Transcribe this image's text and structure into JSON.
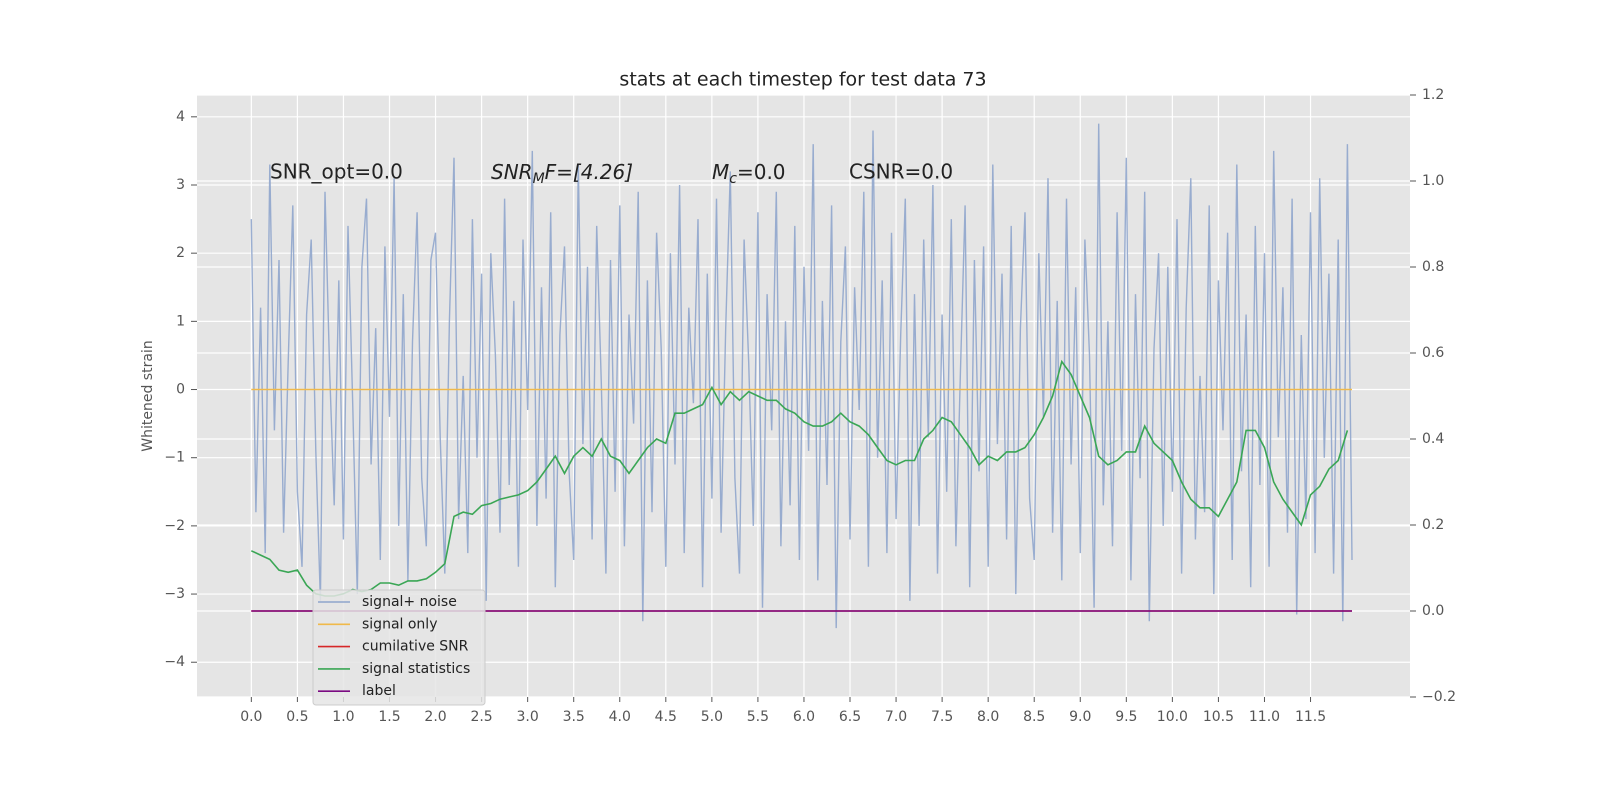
{
  "chart_data": {
    "type": "line",
    "title": "stats at each timestep for test data 73",
    "ylabel": "Whitened strain",
    "annotations": [
      "SNR_opt=0.0",
      [
        "SNR",
        "M",
        "F=[4.26]"
      ],
      [
        "M",
        "c",
        "=0.0"
      ],
      "CSNR=0.0"
    ],
    "xlim": [
      -0.59,
      12.58
    ],
    "ylim": [
      -4.51,
      4.32
    ],
    "y2lim": [
      -0.2,
      1.2
    ],
    "xticks": [
      {
        "value": 0,
        "label": "0.0"
      },
      0.5,
      {
        "value": 1,
        "label": "1.0"
      },
      1.5,
      {
        "value": 2,
        "label": "2.0"
      },
      2.5,
      {
        "value": 3,
        "label": "3.0"
      },
      3.5,
      {
        "value": 4,
        "label": "4.0"
      },
      4.5,
      {
        "value": 5,
        "label": "5.0"
      },
      5.5,
      {
        "value": 6,
        "label": "6.0"
      },
      6.5,
      {
        "value": 7,
        "label": "7.0"
      },
      7.5,
      {
        "value": 8,
        "label": "8.0"
      },
      8.5,
      {
        "value": 9,
        "label": "9.0"
      },
      9.5,
      {
        "value": 10,
        "label": "10.0"
      },
      10.5,
      {
        "value": 11,
        "label": "11.0"
      },
      11.5
    ],
    "yticks": [
      {
        "value": -4,
        "label": "−4"
      },
      {
        "value": -3,
        "label": "−3"
      },
      {
        "value": -2,
        "label": "−2"
      },
      {
        "value": -1,
        "label": "−1"
      },
      0,
      1,
      2,
      3,
      4
    ],
    "y2ticks": [
      {
        "value": -0.2,
        "label": "−0.2"
      },
      {
        "value": 0,
        "label": "0.0"
      },
      0.2,
      0.4,
      0.6,
      0.8,
      {
        "value": 1,
        "label": "1.0"
      },
      1.2
    ],
    "grid": true,
    "legend": "lower left",
    "series": [
      {
        "name": "signal+ noise",
        "color": "#8fa5cc",
        "x": [
          0,
          0.05,
          0.1,
          0.15,
          0.2,
          0.25,
          0.3,
          0.35,
          0.4,
          0.45,
          0.5,
          0.55,
          0.6,
          0.65,
          0.7,
          0.75,
          0.8,
          0.85,
          0.9,
          0.95,
          1,
          1.05,
          1.1,
          1.15,
          1.2,
          1.25,
          1.3,
          1.35,
          1.4,
          1.45,
          1.5,
          1.55,
          1.6,
          1.65,
          1.7,
          1.75,
          1.8,
          1.85,
          1.9,
          1.95,
          2,
          2.05,
          2.1,
          2.15,
          2.2,
          2.25,
          2.3,
          2.35,
          2.4,
          2.45,
          2.5,
          2.55,
          2.6,
          2.65,
          2.7,
          2.75,
          2.8,
          2.85,
          2.9,
          2.95,
          3,
          3.05,
          3.1,
          3.15,
          3.2,
          3.25,
          3.3,
          3.35,
          3.4,
          3.45,
          3.5,
          3.55,
          3.6,
          3.65,
          3.7,
          3.75,
          3.8,
          3.85,
          3.9,
          3.95,
          4,
          4.05,
          4.1,
          4.15,
          4.2,
          4.25,
          4.3,
          4.35,
          4.4,
          4.45,
          4.5,
          4.55,
          4.6,
          4.65,
          4.7,
          4.75,
          4.8,
          4.85,
          4.9,
          4.95,
          5,
          5.05,
          5.1,
          5.15,
          5.2,
          5.25,
          5.3,
          5.35,
          5.4,
          5.45,
          5.5,
          5.55,
          5.6,
          5.65,
          5.7,
          5.75,
          5.8,
          5.85,
          5.9,
          5.95,
          6,
          6.05,
          6.1,
          6.15,
          6.2,
          6.25,
          6.3,
          6.35,
          6.4,
          6.45,
          6.5,
          6.55,
          6.6,
          6.65,
          6.7,
          6.75,
          6.8,
          6.85,
          6.9,
          6.95,
          7,
          7.05,
          7.1,
          7.15,
          7.2,
          7.25,
          7.3,
          7.35,
          7.4,
          7.45,
          7.5,
          7.55,
          7.6,
          7.65,
          7.7,
          7.75,
          7.8,
          7.85,
          7.9,
          7.95,
          8,
          8.05,
          8.1,
          8.15,
          8.2,
          8.25,
          8.3,
          8.35,
          8.4,
          8.45,
          8.5,
          8.55,
          8.6,
          8.65,
          8.7,
          8.75,
          8.8,
          8.85,
          8.9,
          8.95,
          9,
          9.05,
          9.1,
          9.15,
          9.2,
          9.25,
          9.3,
          9.35,
          9.4,
          9.45,
          9.5,
          9.55,
          9.6,
          9.65,
          9.7,
          9.75,
          9.8,
          9.85,
          9.9,
          9.95,
          10,
          10.05,
          10.1,
          10.15,
          10.2,
          10.25,
          10.3,
          10.35,
          10.4,
          10.45,
          10.5,
          10.55,
          10.6,
          10.65,
          10.7,
          10.75,
          10.8,
          10.85,
          10.9,
          10.95,
          11,
          11.05,
          11.1,
          11.15,
          11.2,
          11.25,
          11.3,
          11.35,
          11.4,
          11.45,
          11.5,
          11.55,
          11.6,
          11.65,
          11.7,
          11.75,
          11.8,
          11.85,
          11.9,
          11.95
        ],
        "values": [
          2.5,
          -1.8,
          1.2,
          -2.4,
          3.3,
          -0.6,
          1.9,
          -2.1,
          0.4,
          2.7,
          -1.5,
          -2.6,
          1.1,
          2.2,
          -0.9,
          -3.1,
          2.9,
          0.3,
          -1.7,
          1.6,
          -2.2,
          2.4,
          -0.2,
          -3.0,
          1.8,
          2.8,
          -1.1,
          0.9,
          -2.5,
          2.1,
          -0.4,
          3.1,
          -2.0,
          1.4,
          -2.8,
          0.7,
          2.6,
          -1.3,
          -2.3,
          1.9,
          2.3,
          -0.7,
          -2.7,
          1.0,
          3.4,
          -1.9,
          0.2,
          -2.4,
          2.5,
          -1.0,
          1.7,
          -3.1,
          2.0,
          0.5,
          -2.1,
          2.8,
          -1.4,
          1.3,
          -2.6,
          2.2,
          -0.3,
          3.5,
          -2.0,
          1.5,
          -1.6,
          2.6,
          -2.9,
          0.8,
          2.1,
          -1.2,
          -2.5,
          3.3,
          -0.8,
          1.8,
          -2.2,
          2.4,
          0.1,
          -2.7,
          1.9,
          -1.5,
          2.7,
          -2.3,
          1.1,
          -0.5,
          2.9,
          -3.4,
          1.6,
          -1.8,
          2.3,
          0.6,
          -2.6,
          2.0,
          -1.1,
          3.0,
          -2.4,
          1.2,
          -0.2,
          2.5,
          -2.9,
          1.7,
          -1.6,
          2.8,
          -2.1,
          0.9,
          3.2,
          -1.3,
          -2.7,
          2.2,
          0.4,
          -2.0,
          2.6,
          -3.2,
          1.4,
          -0.6,
          2.9,
          -2.3,
          1.0,
          -1.7,
          2.4,
          -2.5,
          1.8,
          -0.9,
          3.6,
          -2.8,
          1.3,
          -1.4,
          2.7,
          -3.5,
          0.7,
          2.1,
          -2.2,
          1.5,
          -0.3,
          2.9,
          -2.6,
          3.8,
          -1.0,
          1.6,
          -2.4,
          2.3,
          -1.9,
          0.8,
          2.8,
          -3.1,
          1.4,
          -2.0,
          2.2,
          -0.7,
          3.0,
          -2.7,
          1.1,
          -1.5,
          2.5,
          -2.3,
          0.3,
          2.7,
          -2.9,
          1.9,
          -1.2,
          2.1,
          -2.6,
          3.3,
          -0.8,
          1.7,
          -2.2,
          2.4,
          -3.0,
          0.9,
          2.6,
          -1.6,
          -2.5,
          2.0,
          -0.4,
          3.1,
          -2.1,
          1.3,
          -2.8,
          2.8,
          -1.1,
          1.5,
          -2.4,
          2.2,
          0.5,
          -3.2,
          3.9,
          -1.7,
          1.0,
          -2.3,
          2.6,
          -0.9,
          3.4,
          -2.8,
          1.4,
          -1.3,
          2.9,
          -3.4,
          0.6,
          2.0,
          -2.0,
          1.8,
          -1.5,
          2.5,
          -2.7,
          1.2,
          3.1,
          -2.2,
          0.2,
          -1.8,
          2.7,
          -3.0,
          1.6,
          -0.6,
          2.3,
          -2.5,
          3.3,
          -1.2,
          1.1,
          -2.9,
          2.4,
          -1.4,
          2.0,
          -2.6,
          3.5,
          -0.7,
          1.5,
          -2.1,
          2.8,
          -3.3,
          0.8,
          -1.9,
          2.6,
          -2.4,
          3.1,
          -1.0,
          1.7,
          -2.7,
          2.2,
          -3.4,
          3.6,
          -2.5
        ]
      },
      {
        "name": "signal only",
        "color": "#f0b94a",
        "x": [
          0,
          11.95
        ],
        "values": [
          0,
          0
        ]
      },
      {
        "name": "cumilative SNR",
        "color": "#d62728",
        "axis": "y2",
        "x": [
          0,
          11.95
        ],
        "values": [
          0,
          0
        ]
      },
      {
        "name": "signal statistics",
        "color": "#3aa655",
        "axis": "y2",
        "x": [
          0,
          0.1,
          0.2,
          0.3,
          0.4,
          0.5,
          0.6,
          0.7,
          0.8,
          0.9,
          1,
          1.1,
          1.2,
          1.3,
          1.4,
          1.5,
          1.6,
          1.7,
          1.8,
          1.9,
          2,
          2.1,
          2.2,
          2.3,
          2.4,
          2.5,
          2.6,
          2.7,
          2.8,
          2.9,
          3,
          3.1,
          3.2,
          3.3,
          3.4,
          3.5,
          3.6,
          3.7,
          3.8,
          3.9,
          4,
          4.1,
          4.2,
          4.3,
          4.4,
          4.5,
          4.6,
          4.7,
          4.8,
          4.9,
          5,
          5.1,
          5.2,
          5.3,
          5.4,
          5.5,
          5.6,
          5.7,
          5.8,
          5.9,
          6,
          6.1,
          6.2,
          6.3,
          6.4,
          6.5,
          6.6,
          6.7,
          6.8,
          6.9,
          7,
          7.1,
          7.2,
          7.3,
          7.4,
          7.5,
          7.6,
          7.7,
          7.8,
          7.9,
          8,
          8.1,
          8.2,
          8.3,
          8.4,
          8.5,
          8.6,
          8.7,
          8.8,
          8.9,
          9,
          9.1,
          9.2,
          9.3,
          9.4,
          9.5,
          9.6,
          9.7,
          9.8,
          9.9,
          10,
          10.1,
          10.2,
          10.3,
          10.4,
          10.5,
          10.6,
          10.7,
          10.8,
          10.9,
          11,
          11.1,
          11.2,
          11.3,
          11.4,
          11.5,
          11.6,
          11.7,
          11.8,
          11.9
        ],
        "values": [
          0.14,
          0.13,
          0.12,
          0.095,
          0.09,
          0.095,
          0.06,
          0.04,
          0.035,
          0.035,
          0.04,
          0.05,
          0.045,
          0.05,
          0.065,
          0.065,
          0.06,
          0.07,
          0.07,
          0.075,
          0.09,
          0.11,
          0.22,
          0.23,
          0.225,
          0.245,
          0.25,
          0.26,
          0.265,
          0.27,
          0.28,
          0.3,
          0.33,
          0.36,
          0.32,
          0.36,
          0.38,
          0.36,
          0.4,
          0.36,
          0.35,
          0.32,
          0.35,
          0.38,
          0.4,
          0.39,
          0.46,
          0.46,
          0.47,
          0.48,
          0.52,
          0.48,
          0.51,
          0.49,
          0.51,
          0.5,
          0.49,
          0.49,
          0.47,
          0.46,
          0.44,
          0.43,
          0.43,
          0.44,
          0.46,
          0.44,
          0.43,
          0.41,
          0.38,
          0.35,
          0.34,
          0.35,
          0.35,
          0.4,
          0.42,
          0.45,
          0.44,
          0.41,
          0.38,
          0.34,
          0.36,
          0.35,
          0.37,
          0.37,
          0.38,
          0.41,
          0.45,
          0.5,
          0.58,
          0.55,
          0.5,
          0.45,
          0.36,
          0.34,
          0.35,
          0.37,
          0.37,
          0.43,
          0.39,
          0.37,
          0.35,
          0.3,
          0.26,
          0.24,
          0.24,
          0.22,
          0.26,
          0.3,
          0.42,
          0.42,
          0.38,
          0.3,
          0.26,
          0.23,
          0.2,
          0.27,
          0.29,
          0.33,
          0.35,
          0.42
        ]
      },
      {
        "name": "label",
        "color": "#7b0a82",
        "axis": "y2",
        "x": [
          0,
          11.95
        ],
        "values": [
          0,
          0
        ]
      }
    ]
  }
}
